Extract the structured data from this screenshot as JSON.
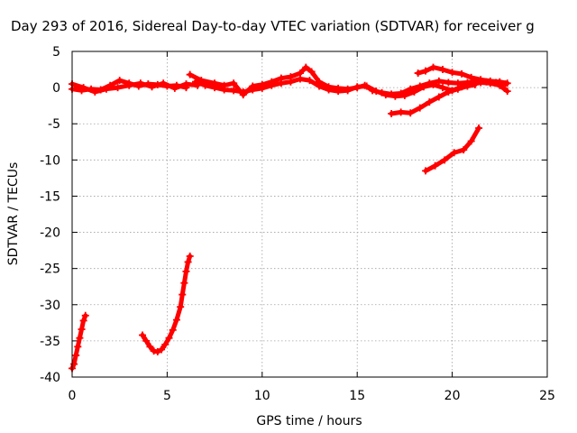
{
  "chart_data": {
    "type": "scatter",
    "title": "Day 293 of 2016, Sidereal Day-to-day VTEC variation (SDTVAR) for receiver g",
    "xlabel": "GPS time / hours",
    "ylabel": "SDTVAR / TECUs",
    "xlim": [
      0,
      25
    ],
    "ylim": [
      -40,
      5
    ],
    "xticks": [
      "0",
      "5",
      "10",
      "15",
      "20",
      "25"
    ],
    "yticks": [
      "5",
      "0",
      "-5",
      "-10",
      "-15",
      "-20",
      "-25",
      "-30",
      "-35",
      "-40"
    ],
    "grid": true,
    "color": "#ff0000",
    "marker": "plus",
    "series": [
      {
        "values": [
          [
            0.0,
            -0.2
          ],
          [
            0.5,
            -0.4
          ],
          [
            1.0,
            -0.2
          ],
          [
            1.5,
            -0.3
          ],
          [
            2.0,
            0.3
          ],
          [
            2.5,
            1.0
          ],
          [
            3.0,
            0.6
          ],
          [
            3.5,
            0.2
          ],
          [
            4.0,
            0.5
          ],
          [
            4.5,
            0.4
          ],
          [
            5.0,
            0.2
          ],
          [
            5.5,
            0.3
          ],
          [
            6.0,
            0.0
          ]
        ]
      },
      {
        "values": [
          [
            0.0,
            0.5
          ],
          [
            0.6,
            0.0
          ],
          [
            1.2,
            -0.6
          ],
          [
            1.8,
            -0.2
          ],
          [
            2.4,
            0.0
          ],
          [
            3.0,
            0.3
          ],
          [
            3.6,
            0.6
          ],
          [
            4.2,
            0.1
          ],
          [
            4.8,
            0.6
          ],
          [
            5.4,
            -0.1
          ],
          [
            6.0,
            0.5
          ],
          [
            6.6,
            0.3
          ]
        ]
      },
      {
        "values": [
          [
            6.2,
            1.8
          ],
          [
            6.8,
            1.0
          ],
          [
            7.5,
            0.6
          ],
          [
            8.0,
            0.3
          ],
          [
            8.5,
            0.6
          ],
          [
            9.0,
            -1.0
          ],
          [
            9.5,
            0.2
          ],
          [
            10.0,
            0.4
          ],
          [
            10.5,
            0.8
          ],
          [
            11.0,
            1.3
          ],
          [
            11.5,
            1.5
          ],
          [
            12.0,
            2.0
          ],
          [
            12.3,
            2.8
          ],
          [
            12.6,
            2.2
          ],
          [
            13.0,
            0.8
          ],
          [
            13.5,
            0.1
          ],
          [
            14.0,
            -0.1
          ],
          [
            14.5,
            -0.2
          ],
          [
            15.0,
            0.0
          ],
          [
            15.4,
            0.3
          ],
          [
            15.8,
            -0.4
          ],
          [
            16.3,
            -0.7
          ],
          [
            16.8,
            -0.9
          ],
          [
            17.3,
            -0.8
          ],
          [
            17.8,
            -0.2
          ],
          [
            18.3,
            0.2
          ],
          [
            18.8,
            0.6
          ],
          [
            19.3,
            0.9
          ],
          [
            19.8,
            0.7
          ],
          [
            20.3,
            0.6
          ],
          [
            20.8,
            0.7
          ],
          [
            21.3,
            0.9
          ],
          [
            21.8,
            0.8
          ],
          [
            22.3,
            0.7
          ],
          [
            22.8,
            0.5
          ]
        ]
      },
      {
        "values": [
          [
            6.5,
            0.8
          ],
          [
            7.0,
            0.3
          ],
          [
            7.5,
            0.0
          ],
          [
            8.0,
            -0.3
          ],
          [
            8.5,
            -0.4
          ],
          [
            9.0,
            -0.6
          ],
          [
            9.5,
            -0.3
          ],
          [
            10.0,
            -0.1
          ],
          [
            10.5,
            0.3
          ],
          [
            11.0,
            0.6
          ],
          [
            11.5,
            0.8
          ],
          [
            12.0,
            1.2
          ],
          [
            12.5,
            1.0
          ],
          [
            13.0,
            0.2
          ],
          [
            13.5,
            -0.3
          ],
          [
            14.0,
            -0.5
          ],
          [
            14.5,
            -0.4
          ],
          [
            15.0,
            0.1
          ],
          [
            15.5,
            0.2
          ],
          [
            16.0,
            -0.5
          ],
          [
            16.5,
            -1.0
          ],
          [
            17.0,
            -1.2
          ],
          [
            17.5,
            -1.1
          ],
          [
            18.0,
            -0.6
          ],
          [
            18.5,
            0.1
          ],
          [
            19.0,
            0.4
          ],
          [
            19.5,
            0.0
          ],
          [
            20.0,
            -0.4
          ],
          [
            20.5,
            0.1
          ],
          [
            21.0,
            0.5
          ],
          [
            21.5,
            0.7
          ],
          [
            22.0,
            0.6
          ],
          [
            22.5,
            0.3
          ],
          [
            22.9,
            -0.5
          ]
        ]
      },
      {
        "values": [
          [
            18.2,
            2.0
          ],
          [
            18.6,
            2.3
          ],
          [
            19.0,
            2.8
          ],
          [
            19.5,
            2.5
          ],
          [
            20.0,
            2.1
          ],
          [
            20.5,
            1.9
          ],
          [
            21.0,
            1.4
          ],
          [
            21.5,
            1.1
          ],
          [
            22.0,
            0.9
          ],
          [
            22.5,
            0.8
          ],
          [
            22.9,
            0.6
          ]
        ]
      },
      {
        "values": [
          [
            16.8,
            -3.6
          ],
          [
            17.3,
            -3.4
          ],
          [
            17.8,
            -3.5
          ],
          [
            18.3,
            -2.8
          ],
          [
            18.8,
            -2.0
          ],
          [
            19.3,
            -1.3
          ],
          [
            19.8,
            -0.6
          ],
          [
            20.3,
            -0.2
          ],
          [
            20.8,
            0.2
          ],
          [
            21.2,
            0.4
          ]
        ]
      },
      {
        "values": [
          [
            18.6,
            -11.5
          ],
          [
            19.1,
            -10.8
          ],
          [
            19.6,
            -10.0
          ],
          [
            20.1,
            -9.0
          ],
          [
            20.6,
            -8.6
          ],
          [
            21.0,
            -7.4
          ],
          [
            21.4,
            -5.6
          ]
        ]
      },
      {
        "values": [
          [
            0.0,
            -38.8
          ],
          [
            0.1,
            -38.2
          ],
          [
            0.2,
            -37.0
          ],
          [
            0.3,
            -35.8
          ],
          [
            0.4,
            -34.6
          ],
          [
            0.5,
            -33.4
          ],
          [
            0.6,
            -32.2
          ],
          [
            0.7,
            -31.5
          ]
        ]
      },
      {
        "values": [
          [
            3.7,
            -34.2
          ],
          [
            3.9,
            -35.0
          ],
          [
            4.1,
            -35.8
          ],
          [
            4.3,
            -36.4
          ],
          [
            4.5,
            -36.5
          ],
          [
            4.7,
            -36.2
          ],
          [
            4.9,
            -35.5
          ],
          [
            5.1,
            -34.6
          ],
          [
            5.3,
            -33.5
          ],
          [
            5.5,
            -32.1
          ],
          [
            5.7,
            -30.3
          ],
          [
            5.8,
            -28.6
          ],
          [
            5.9,
            -27.0
          ],
          [
            6.0,
            -25.4
          ],
          [
            6.1,
            -24.1
          ],
          [
            6.2,
            -23.3
          ]
        ]
      }
    ]
  }
}
